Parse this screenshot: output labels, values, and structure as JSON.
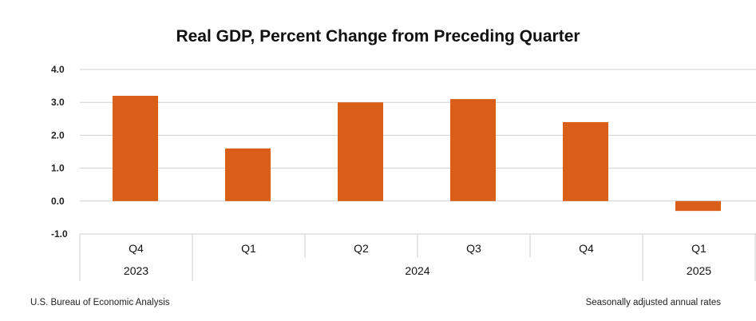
{
  "chart_data": {
    "type": "bar",
    "title": "Real GDP, Percent Change from Preceding Quarter",
    "categories": [
      "Q4",
      "Q1",
      "Q2",
      "Q3",
      "Q4",
      "Q1"
    ],
    "years": [
      {
        "label": "2023",
        "quarters": 1
      },
      {
        "label": "2024",
        "quarters": 4
      },
      {
        "label": "2025",
        "quarters": 1
      }
    ],
    "values": [
      3.2,
      1.6,
      3.0,
      3.1,
      2.4,
      -0.3
    ],
    "ylim": [
      -1.0,
      4.0
    ],
    "yticks": [
      "4.0",
      "3.0",
      "2.0",
      "1.0",
      "0.0",
      "-1.0"
    ],
    "grid": true,
    "bar_color": "#D95F18"
  },
  "footer": {
    "source": "U.S. Bureau of Economic Analysis",
    "note": "Seasonally adjusted annual rates"
  }
}
